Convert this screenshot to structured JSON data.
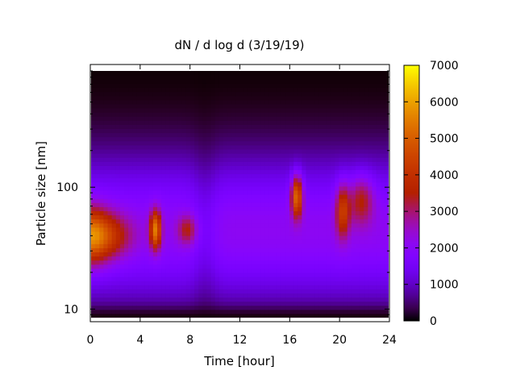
{
  "chart_data": {
    "type": "heatmap",
    "title": "dN / d log d (3/19/19)",
    "xlabel": "Time [hour]",
    "ylabel": "Particle size [nm]",
    "x_range": [
      0,
      24
    ],
    "x_ticks": [
      0,
      4,
      8,
      12,
      16,
      20,
      24
    ],
    "y_range": [
      8.5,
      900
    ],
    "y_scale": "log",
    "y_ticks": [
      10,
      100
    ],
    "colorbar": {
      "range": [
        0,
        7000
      ],
      "ticks": [
        0,
        1000,
        2000,
        3000,
        4000,
        5000,
        6000,
        7000
      ],
      "colormap": "gnuplot (black - purple - blue - red - orange - yellow)"
    },
    "background_level": {
      "description": "broad band of ~1500-2200 across most sizes, fading to near 0 at smallest (<10 nm) and largest (>500 nm) sizes"
    },
    "hotspots": [
      {
        "time_hour": 0.0,
        "size_nm": 40,
        "value": 5600
      },
      {
        "time_hour": 2.0,
        "size_nm": 40,
        "value": 4000
      },
      {
        "time_hour": 5.2,
        "size_nm": 45,
        "value": 5500
      },
      {
        "time_hour": 7.8,
        "size_nm": 45,
        "value": 3700
      },
      {
        "time_hour": 16.6,
        "size_nm": 85,
        "value": 5600
      },
      {
        "time_hour": 20.3,
        "size_nm": 65,
        "value": 4600
      },
      {
        "time_hour": 21.8,
        "size_nm": 80,
        "value": 3900
      }
    ]
  }
}
